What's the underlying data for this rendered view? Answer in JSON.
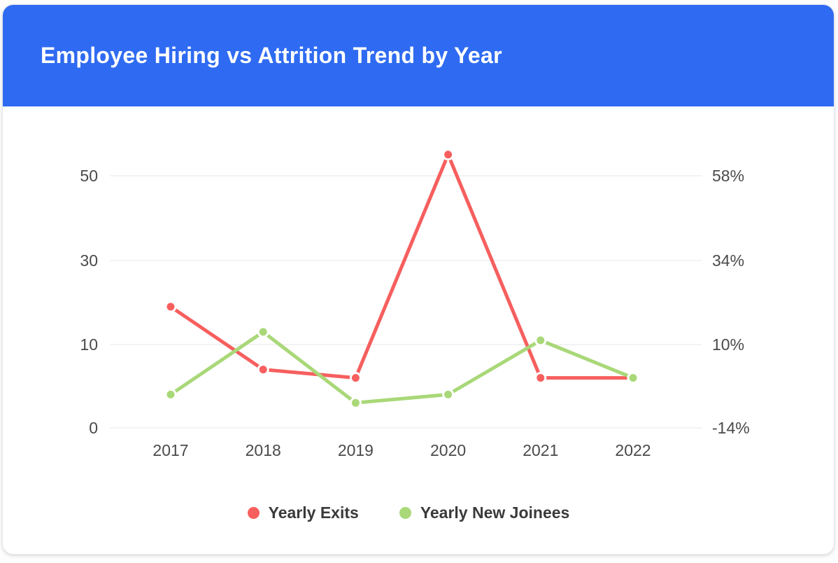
{
  "header": {
    "title": "Employee Hiring vs Attrition Trend by Year",
    "background_color": "#2f6bf2",
    "title_color": "#ffffff"
  },
  "chart_data": {
    "type": "line",
    "title": "Employee Hiring vs Attrition Trend by Year",
    "categories": [
      "2017",
      "2018",
      "2019",
      "2020",
      "2021",
      "2022"
    ],
    "series": [
      {
        "name": "Yearly Exits",
        "color": "#f65f5e",
        "values": [
          19,
          7,
          6,
          55,
          6,
          6
        ]
      },
      {
        "name": "Yearly New Joinees",
        "color": "#a9d878",
        "values": [
          4,
          13,
          3,
          4,
          11,
          6
        ]
      }
    ],
    "left_axis": {
      "tick_values": [
        0,
        10,
        30,
        50
      ],
      "tick_labels": [
        "0",
        "10",
        "30",
        "50"
      ]
    },
    "right_axis": {
      "tick_labels": [
        "-14%",
        "10%",
        "34%",
        "58%"
      ]
    },
    "xlabel": "",
    "ylabel": "",
    "grid": true,
    "legend_position": "bottom"
  },
  "theme": {
    "grid_color": "#ececec",
    "axis_label_color": "#4a4a4b",
    "legend_text_color": "#3a3a3a",
    "card_background": "#ffffff"
  }
}
